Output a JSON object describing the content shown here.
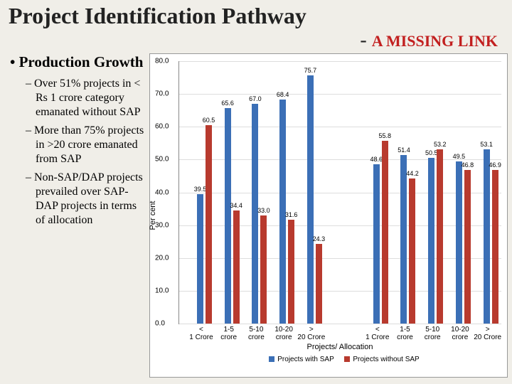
{
  "title": "Project Identification Pathway",
  "subtitle_dash": "- ",
  "subtitle_text": "A MISSING LINK",
  "left": {
    "heading": "Production Growth",
    "bullets": [
      "Over 51% projects in < Rs 1 crore category emanated without SAP",
      "More than 75% projects in >20 crore emanated from SAP",
      "Non-SAP/DAP projects prevailed over SAP-DAP projects in terms of allocation"
    ]
  },
  "chart": {
    "ylabel": "Per cent",
    "xlabel": "Projects/ Allocation",
    "ylim": [
      0,
      80
    ],
    "ytick_step": 10,
    "bar_colors": [
      "#3b6fb6",
      "#b83a2e"
    ],
    "legend": [
      "Projects with SAP",
      "Projects without SAP"
    ],
    "group_gap": 0.35,
    "categories": [
      "< 1 Crore",
      "1-5 crore",
      "5-10 crore",
      "10-20 crore",
      "> 20 Crore",
      "< 1 Crore",
      "1-5 crore",
      "5-10 crore",
      "10-20 crore",
      "> 20 Crore"
    ],
    "series": [
      {
        "name": "with",
        "values": [
          39.5,
          65.6,
          67.0,
          68.4,
          75.7,
          48.6,
          51.4,
          50.5,
          49.5,
          53.1
        ]
      },
      {
        "name": "without",
        "values": [
          60.5,
          34.4,
          33.0,
          31.6,
          24.3,
          55.8,
          44.2,
          53.2,
          46.8,
          46.9
        ]
      }
    ]
  }
}
